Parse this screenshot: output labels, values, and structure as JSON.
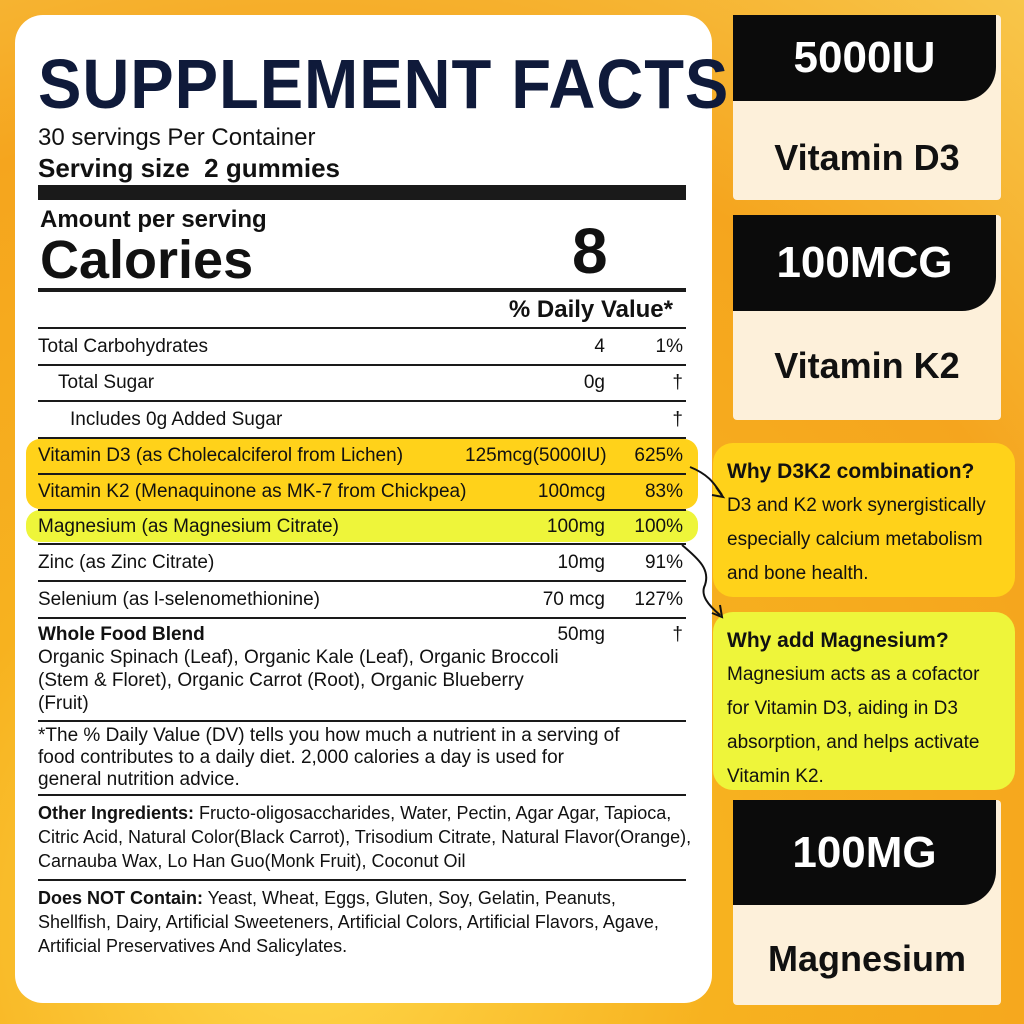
{
  "facts": {
    "title": "SUPPLEMENT FACTS",
    "servings": "30 servings Per Container",
    "serving_size": "Serving size  2 gummies",
    "amount_label": "Amount per serving",
    "calories_label": "Calories",
    "calories_value": "8",
    "dv_header": "% Daily Value*",
    "rows": [
      {
        "name": "Total Carbohydrates",
        "amount": "4",
        "dv": "1%"
      },
      {
        "name": "Total Sugar",
        "amount": "0g",
        "dv": "†"
      },
      {
        "name": "Includes 0g Added Sugar",
        "amount": "",
        "dv": "†"
      },
      {
        "name": "Vitamin D3 (as Cholecalciferol from Lichen)",
        "amount": "125mcg(5000IU)",
        "dv": "625%"
      },
      {
        "name": "Vitamin K2 (Menaquinone as MK-7 from Chickpea)",
        "amount": "100mcg",
        "dv": "83%"
      },
      {
        "name": "Magnesium (as Magnesium Citrate)",
        "amount": "100mg",
        "dv": "100%"
      },
      {
        "name": "Zinc (as Zinc Citrate)",
        "amount": "10mg",
        "dv": "91%"
      },
      {
        "name": "Selenium (as l-selenomethionine)",
        "amount": "70 mcg",
        "dv": "127%"
      }
    ],
    "blend": {
      "name": "Whole Food Blend",
      "amount": "50mg",
      "dv": "†",
      "ingredients": "Organic Spinach (Leaf), Organic Kale (Leaf), Organic Broccoli (Stem & Floret), Organic Carrot (Root), Organic Blueberry (Fruit)"
    },
    "footnote": "*The % Daily Value (DV) tells you how much a nutrient in a serving of food contributes to a daily diet. 2,000 calories a day is used for general nutrition advice.",
    "other_label": "Other Ingredients:",
    "other_text": " Fructo-oligosaccharides, Water, Pectin, Agar Agar, Tapioca, Citric Acid, Natural Color(Black Carrot), Trisodium Citrate, Natural Flavor(Orange), Carnauba Wax, Lo Han Guo(Monk Fruit), Coconut Oil",
    "not_label": "Does NOT Contain:",
    "not_text": " Yeast, Wheat, Eggs, Gluten, Soy, Gelatin, Peanuts, Shellfish, Dairy, Artificial Sweeteners, Artificial Colors, Artificial Flavors, Agave, Artificial Preservatives And Salicylates."
  },
  "badges": [
    {
      "amount": "5000IU",
      "name": "Vitamin D3"
    },
    {
      "amount": "100MCG",
      "name": "Vitamin K2"
    },
    {
      "amount": "100MG",
      "name": "Magnesium"
    }
  ],
  "notes": [
    {
      "title": "Why D3K2 combination?",
      "text": "D3 and K2 work synergistically especially calcium metabolism and bone health."
    },
    {
      "title": "Why add Magnesium?",
      "text": "Magnesium acts as a cofactor for Vitamin D3, aiding in D3 absorption, and helps activate Vitamin K2."
    }
  ],
  "colors": {
    "title_navy": "#0f1a3a",
    "d3k2_highlight": "#ffd21a",
    "magnesium_highlight": "#eef53a",
    "background": "#f5a51e"
  }
}
